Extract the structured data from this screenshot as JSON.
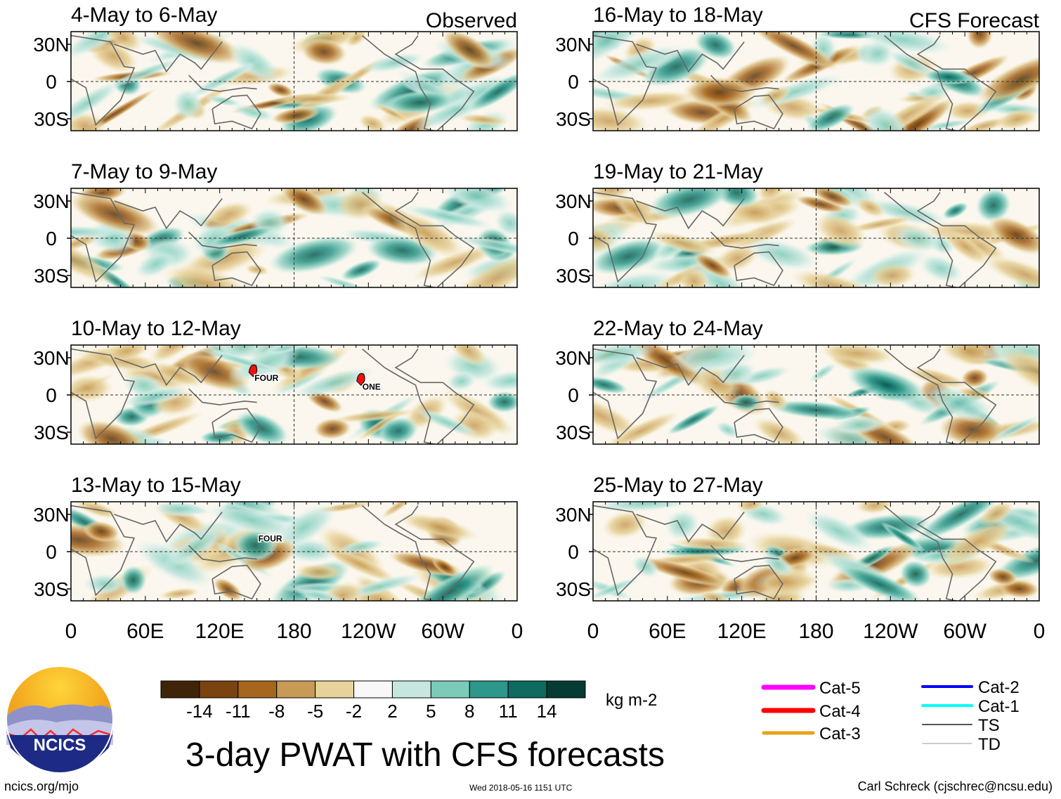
{
  "chart_data": {
    "type": "heatmap",
    "title": "3-day PWAT with CFS forecasts",
    "variable": "precipitable water anomaly",
    "units": "kg m-2",
    "x_ticks": [
      "0",
      "60E",
      "120E",
      "180",
      "120W",
      "60W",
      "0"
    ],
    "y_ticks": [
      "30N",
      "0",
      "30S"
    ],
    "left_column_label": "Observed",
    "right_column_label": "CFS Forecast",
    "observed_panels": [
      {
        "period": "4-May to 6-May",
        "storms": []
      },
      {
        "period": "7-May to 9-May",
        "storms": []
      },
      {
        "period": "10-May to 12-May",
        "storms": [
          "FOUR",
          "ONE"
        ]
      },
      {
        "period": "13-May to 15-May",
        "storms": [
          "FOUR"
        ]
      }
    ],
    "forecast_panels": [
      {
        "period": "16-May to 18-May"
      },
      {
        "period": "19-May to 21-May"
      },
      {
        "period": "22-May to 24-May"
      },
      {
        "period": "25-May to 27-May"
      }
    ],
    "colorbar": {
      "ticks": [
        "-14",
        "-11",
        "-8",
        "-5",
        "-2",
        "2",
        "5",
        "8",
        "11",
        "14"
      ],
      "colors": [
        "#3f2408",
        "#7a4310",
        "#a7661e",
        "#c79a55",
        "#e6d29a",
        "#f6ecd0",
        "#f8f8f8",
        "#c6e7df",
        "#7ccbb9",
        "#2c978a",
        "#0d6b60",
        "#063b33"
      ]
    },
    "legend": [
      {
        "label": "Cat-5",
        "color": "#ff00ff"
      },
      {
        "label": "Cat-4",
        "color": "#ff0000"
      },
      {
        "label": "Cat-3",
        "color": "#e8a21c"
      },
      {
        "label": "Cat-2",
        "color": "#0000ff"
      },
      {
        "label": "Cat-1",
        "color": "#00ffff"
      },
      {
        "label": "TS",
        "color": "#555555"
      },
      {
        "label": "TD",
        "color": "#999999"
      }
    ]
  },
  "logo": {
    "text": "NCICS"
  },
  "footer": {
    "url": "ncics.org/mjo",
    "timestamp": "Wed 2018-05-16 1151 UTC",
    "credit": "Carl Schreck (cjschrec@ncsu.edu)"
  }
}
